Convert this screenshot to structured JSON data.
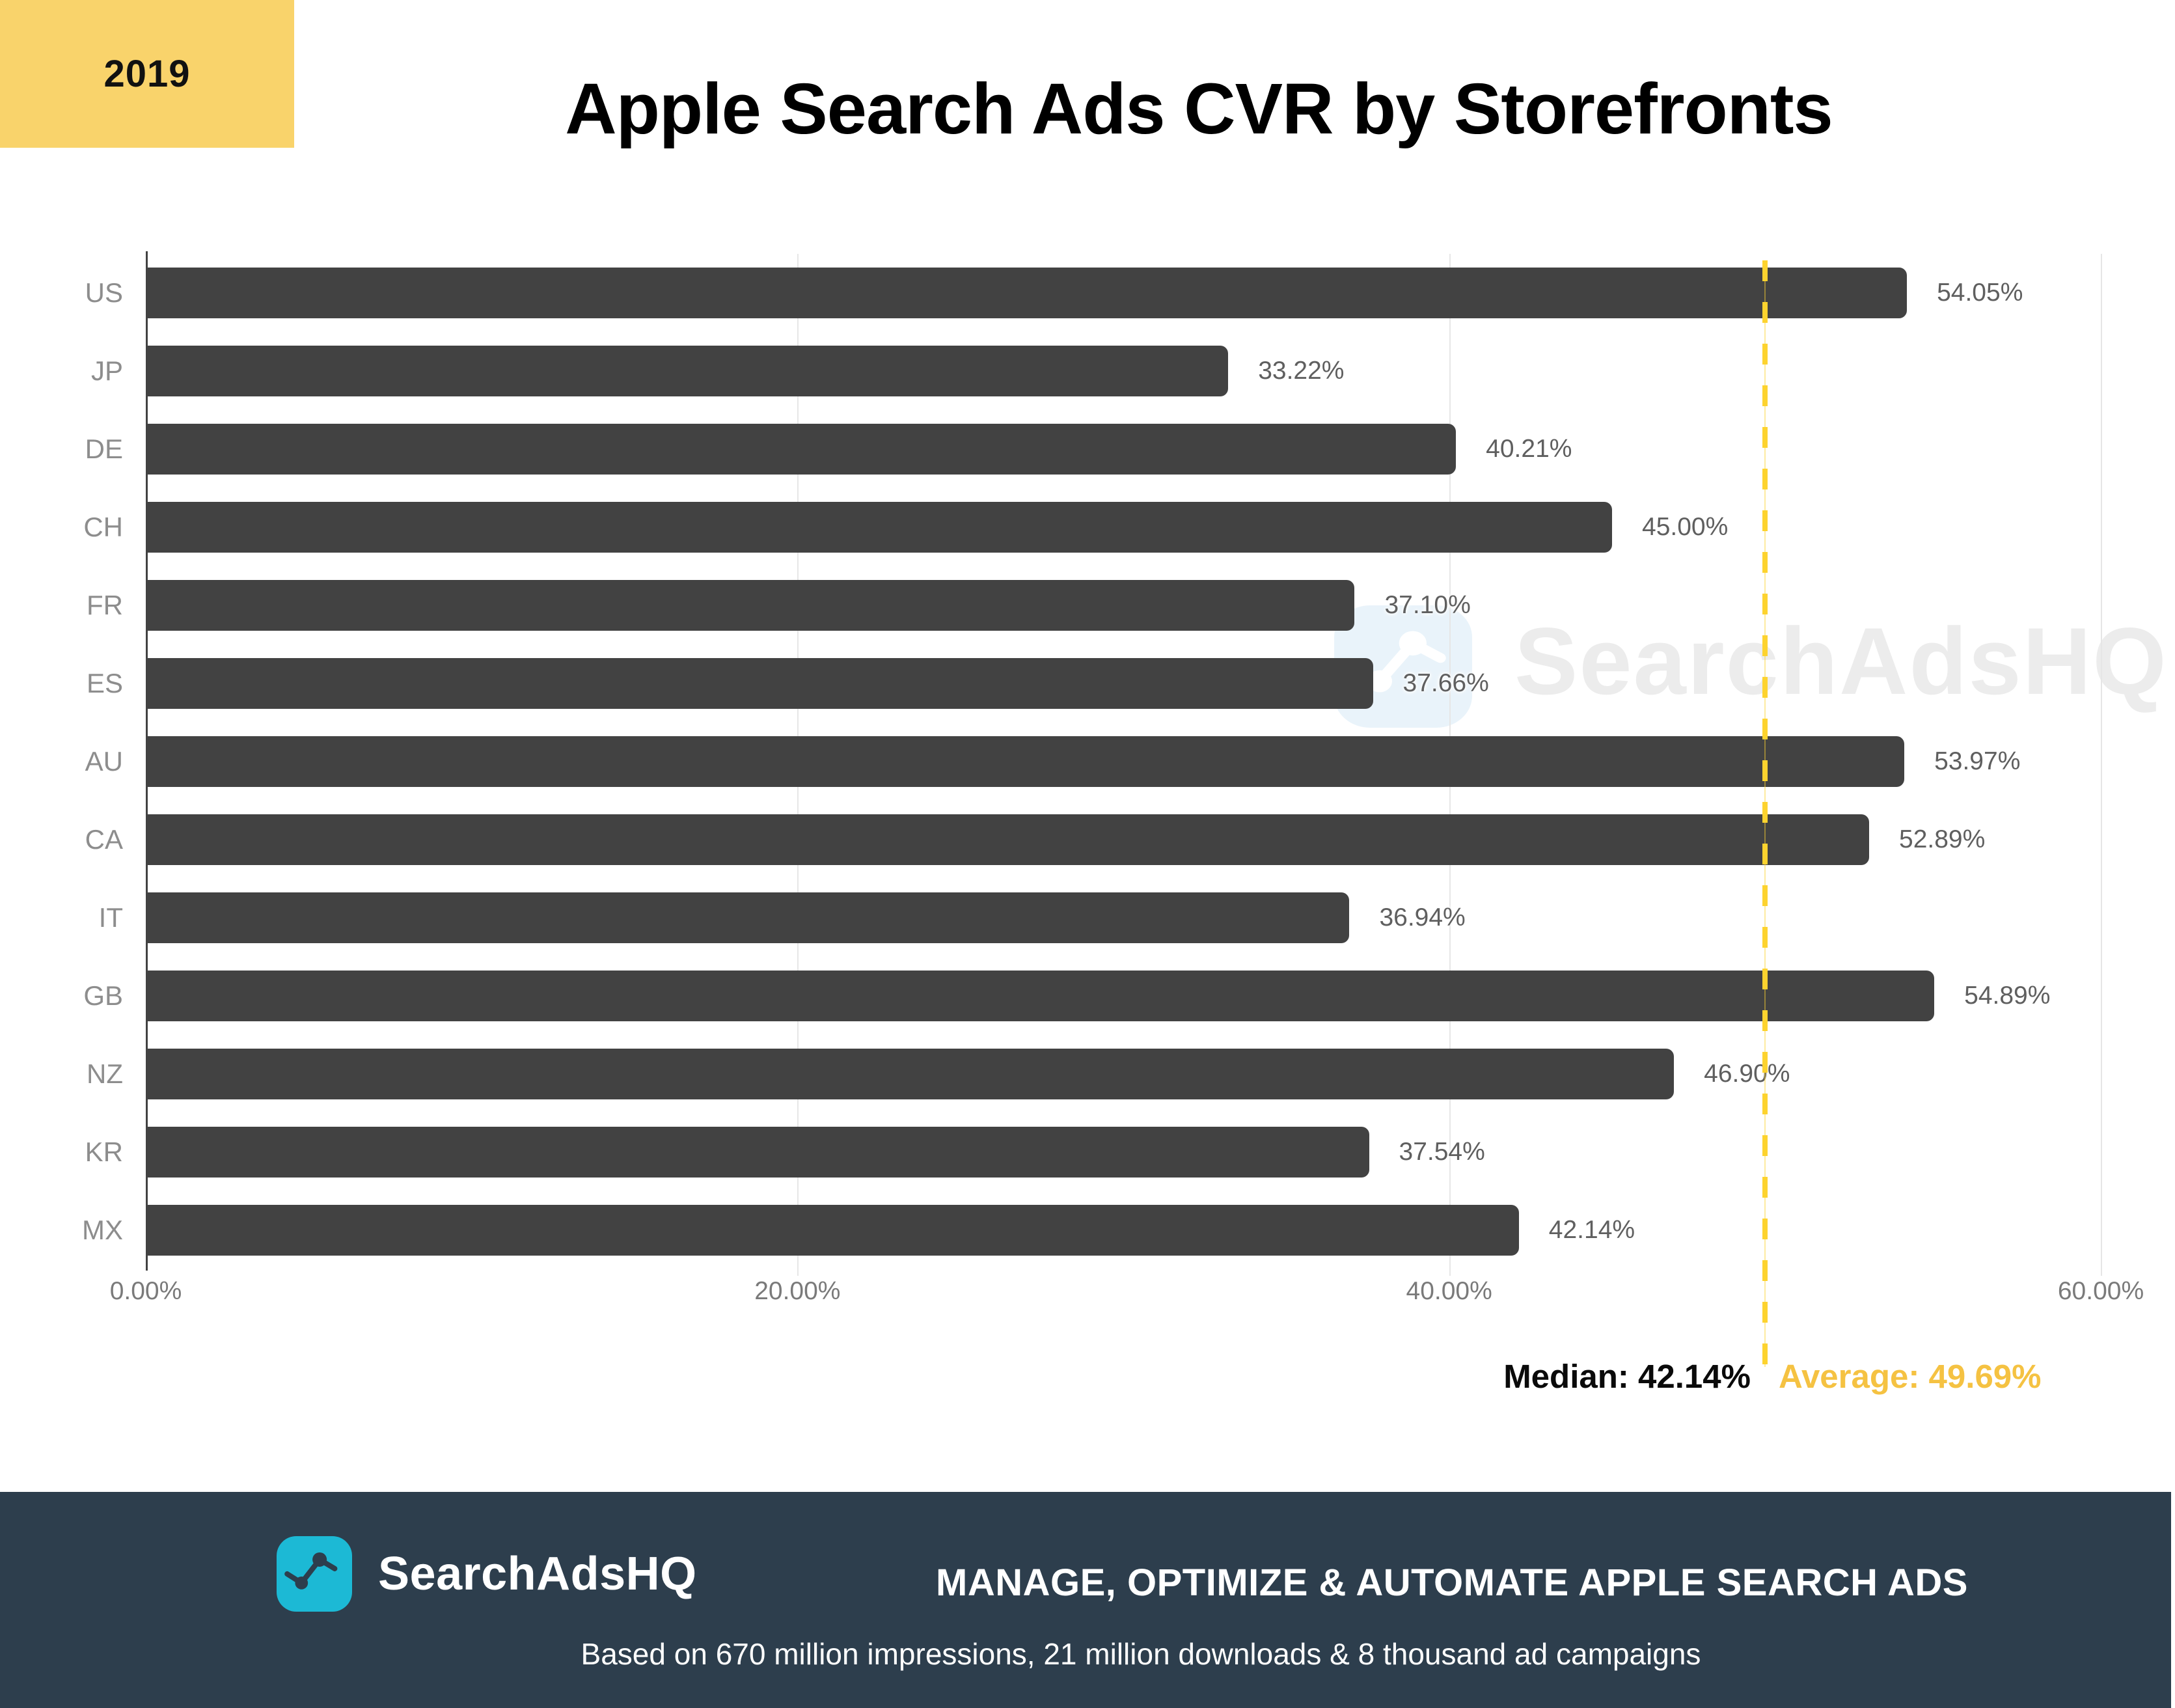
{
  "year_badge": "2019",
  "title": "Apple Search Ads CVR by Storefronts",
  "watermark": {
    "text": "SearchAdsHQ"
  },
  "chart_data": {
    "type": "bar",
    "orientation": "horizontal",
    "title": "Apple Search Ads CVR by Storefronts",
    "categories": [
      "US",
      "JP",
      "DE",
      "CH",
      "FR",
      "ES",
      "AU",
      "CA",
      "IT",
      "GB",
      "NZ",
      "KR",
      "MX"
    ],
    "values": [
      54.05,
      33.22,
      40.21,
      45.0,
      37.1,
      37.66,
      53.97,
      52.89,
      36.94,
      54.89,
      46.9,
      37.54,
      42.14
    ],
    "value_labels": [
      "54.05%",
      "33.22%",
      "40.21%",
      "45.00%",
      "37.10%",
      "37.66%",
      "53.97%",
      "52.89%",
      "36.94%",
      "54.89%",
      "46.90%",
      "37.54%",
      "42.14%"
    ],
    "xlim": [
      0,
      60
    ],
    "x_tick_values": [
      0,
      20,
      40,
      60
    ],
    "x_tick_labels": [
      "0.00%",
      "20.00%",
      "40.00%",
      "60.00%"
    ],
    "grid": true,
    "median": {
      "label": "Median: 42.14%",
      "value": 42.14
    },
    "average": {
      "label": "Average: 49.69%",
      "value": 49.69
    },
    "colors": {
      "bar": "#424242",
      "average_line": "#FDD32F",
      "average_text": "#F5C242",
      "median_text": "#0A0A0A",
      "gridline": "#E6E6E6",
      "axis": "#424242",
      "category_label": "#8D8D8D",
      "value_label": "#5F5F5F",
      "tick_label": "#7A7A7A"
    }
  },
  "footer": {
    "brand": "SearchAdsHQ",
    "tagline": "MANAGE, OPTIMIZE & AUTOMATE APPLE SEARCH ADS",
    "basis": "Based on 670 million impressions, 21 million downloads & 8 thousand ad campaigns",
    "colors": {
      "background": "#2D3E4D",
      "logo_teal": "#1CB9D5",
      "text": "#FFFFFF",
      "accent_yellow": "#F9D36B"
    }
  }
}
